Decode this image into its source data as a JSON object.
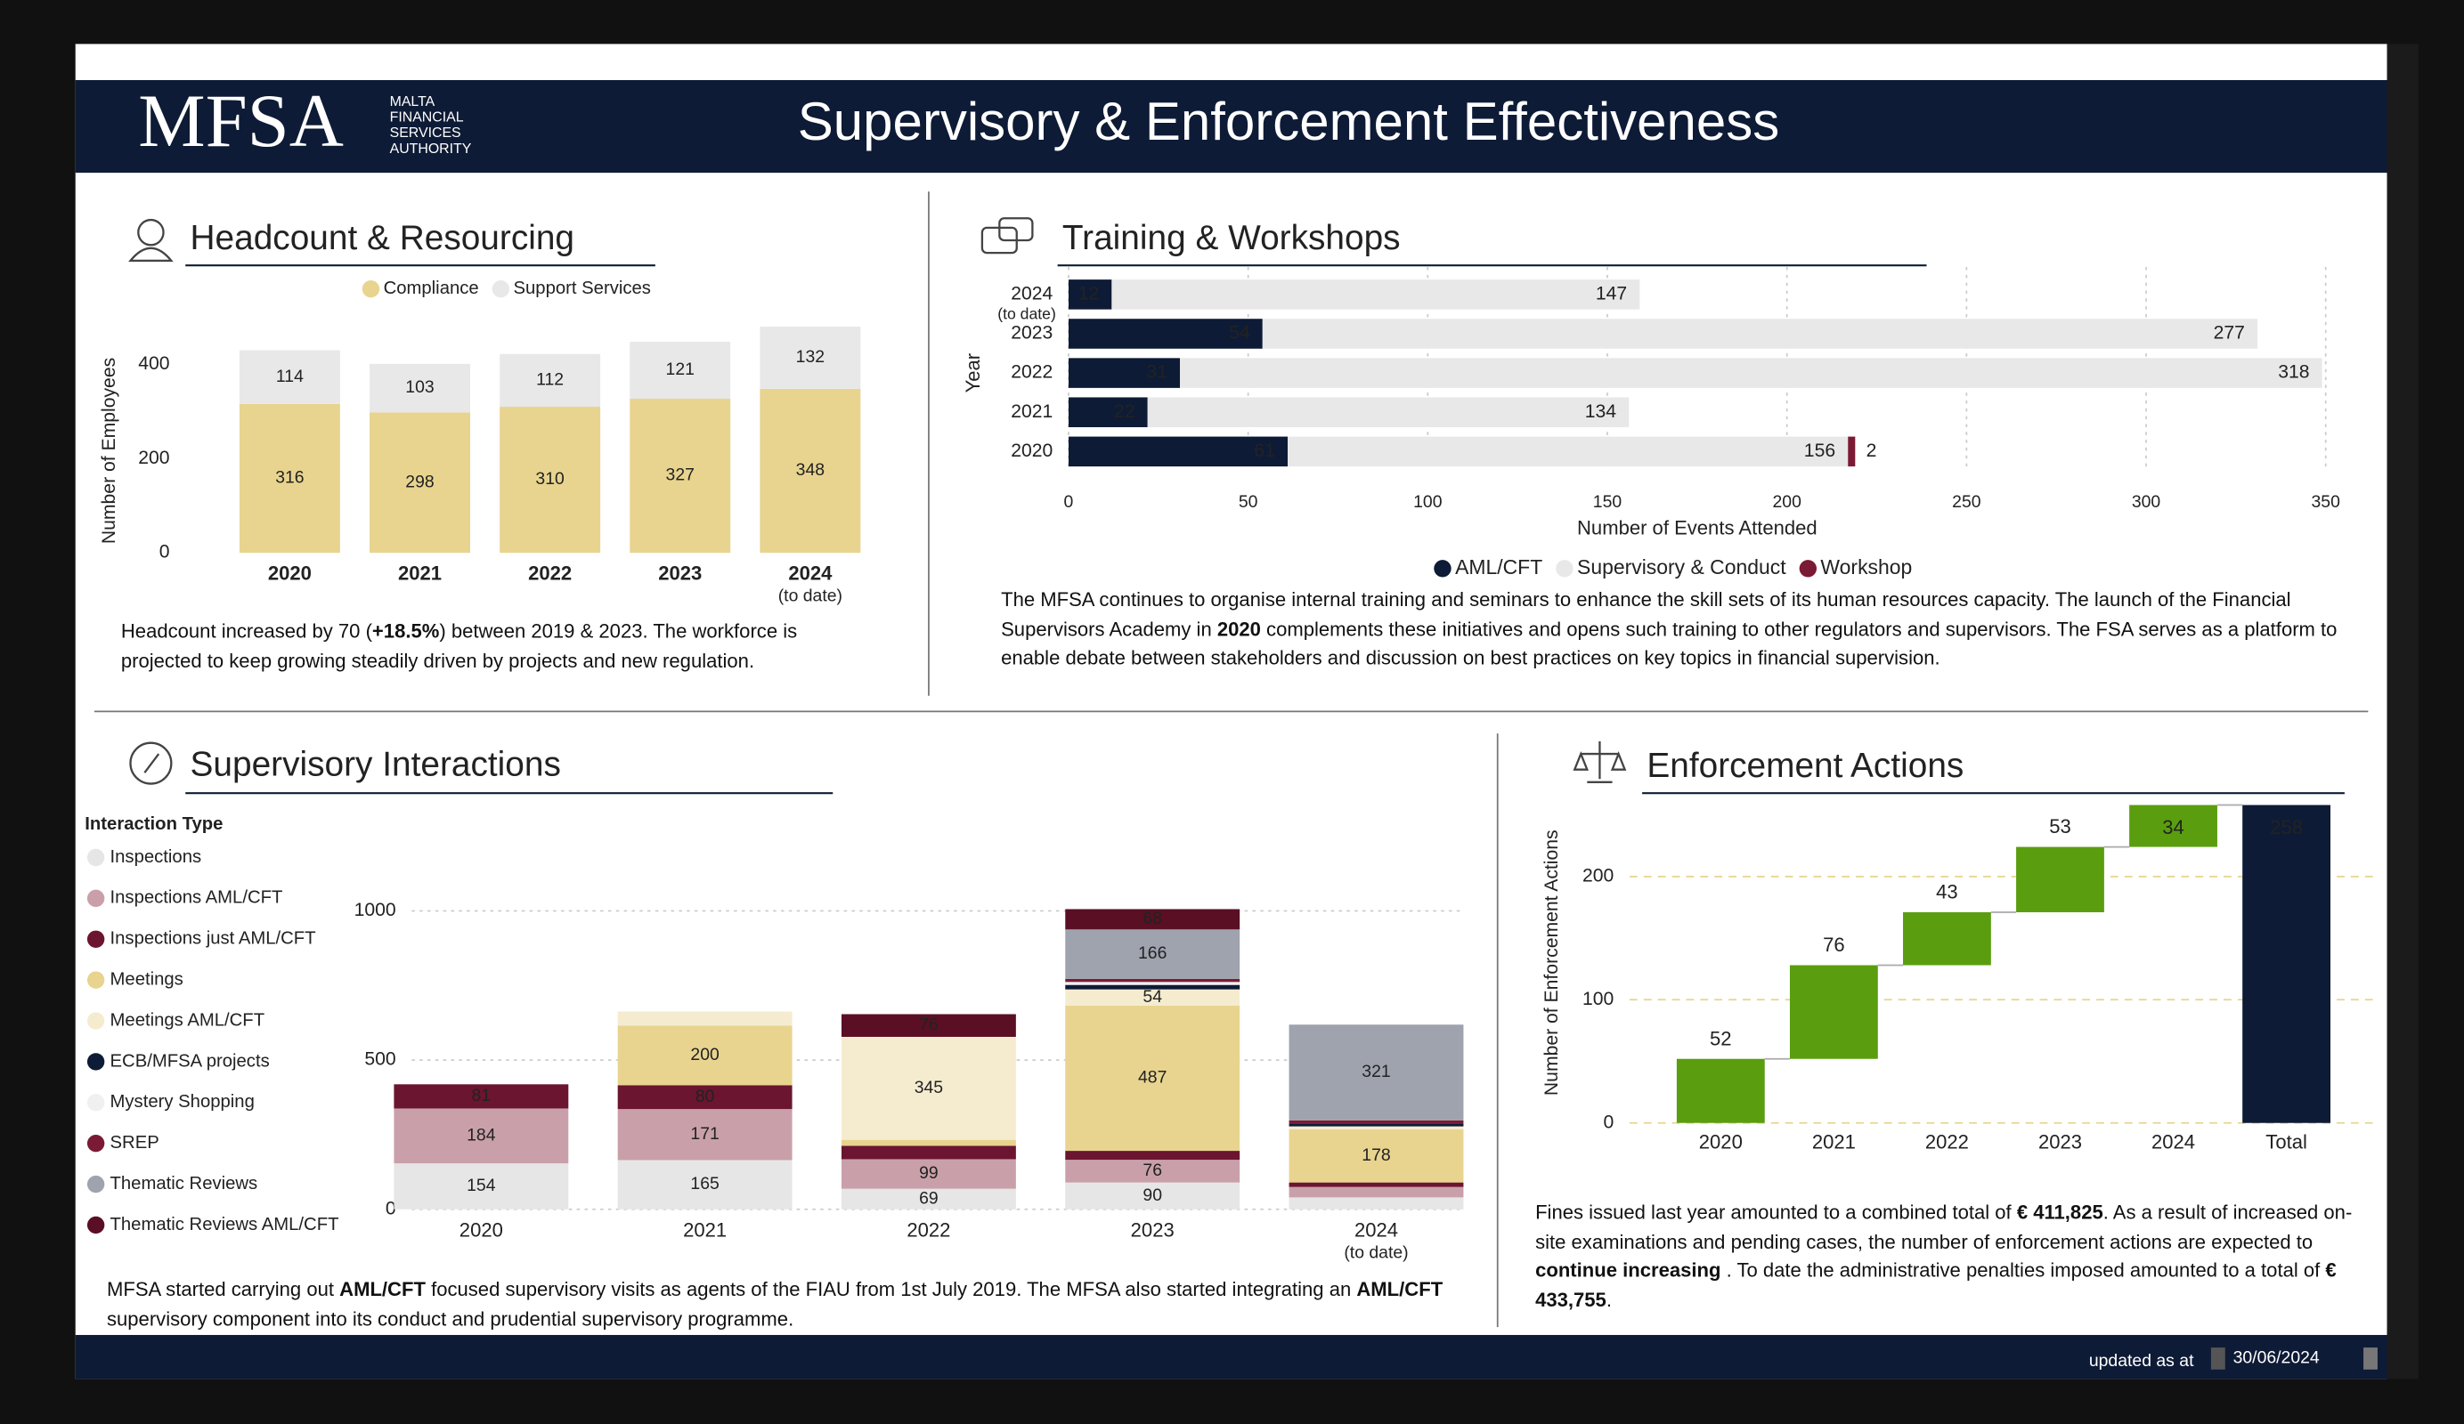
{
  "header": {
    "logo": "MFSA",
    "logo_lines": [
      "MALTA",
      "FINANCIAL",
      "SERVICES",
      "AUTHORITY"
    ],
    "title": "Supervisory & Enforcement Effectiveness"
  },
  "footer": {
    "label": "updated as at",
    "date": "30/06/2024"
  },
  "chart_data": [
    {
      "type": "stacked-bar",
      "title": "Headcount & Resourcing",
      "ylabel": "Number of Employees",
      "legend": "top",
      "grid": false,
      "categories": [
        "2020",
        "2021",
        "2022",
        "2023",
        "2024"
      ],
      "category_notes": [
        null,
        null,
        null,
        null,
        "(to date)"
      ],
      "series": [
        {
          "name": "Compliance",
          "color": "#e8d48f",
          "values": [
            316,
            298,
            310,
            327,
            348
          ]
        },
        {
          "name": "Support Services",
          "color": "#e8e8e8",
          "values": [
            114,
            103,
            112,
            121,
            132
          ]
        }
      ],
      "ylim": [
        0,
        500
      ],
      "yticks": [
        0,
        200,
        400
      ],
      "note": [
        {
          "text": "Headcount increased by 70 ("
        },
        {
          "text": "+18.5%",
          "bold": true
        },
        {
          "text": ") between 2019 & 2023. The workforce is projected to keep growing steadily driven by projects and new regulation."
        }
      ]
    },
    {
      "type": "stacked-barh",
      "title": "Training & Workshops",
      "xlabel": "Number of Events Attended",
      "ylabel": "Year",
      "legend": "bottom",
      "grid": true,
      "categories": [
        "2024",
        "2023",
        "2022",
        "2021",
        "2020"
      ],
      "category_notes": [
        "(to date)",
        null,
        null,
        null,
        null
      ],
      "series": [
        {
          "name": "AML/CFT",
          "color": "#0e1b36",
          "values": [
            12,
            54,
            31,
            22,
            61
          ]
        },
        {
          "name": "Supervisory & Conduct",
          "color": "#e8e8e8",
          "values": [
            147,
            277,
            318,
            134,
            156
          ]
        },
        {
          "name": "Workshop",
          "color": "#7b1a34",
          "values": [
            null,
            null,
            null,
            null,
            2
          ]
        }
      ],
      "xlim": [
        0,
        350
      ],
      "xticks": [
        0,
        50,
        100,
        150,
        200,
        250,
        300,
        350
      ],
      "note": [
        {
          "text": "The MFSA continues to organise internal training and seminars to enhance the skill sets of its human resources capacity. The launch of the Financial Supervisors Academy in "
        },
        {
          "text": "2020",
          "bold": true
        },
        {
          "text": " complements these initiatives and opens such training to other regulators and supervisors. The FSA serves as a platform to enable debate between stakeholders and discussion on best practices on key topics in financial supervision."
        }
      ]
    },
    {
      "type": "stacked-bar",
      "title": "Supervisory Interactions",
      "legend_title": "Interaction Type",
      "legend": "left",
      "grid": true,
      "categories": [
        "2020",
        "2021",
        "2022",
        "2023",
        "2024"
      ],
      "category_notes": [
        null,
        null,
        null,
        null,
        "(to date)"
      ],
      "series": [
        {
          "name": "Inspections",
          "color": "#e6e6e6",
          "values": [
            154,
            165,
            69,
            90,
            40
          ]
        },
        {
          "name": "Inspections AML/CFT",
          "color": "#c9a0aa",
          "values": [
            184,
            171,
            99,
            76,
            35
          ]
        },
        {
          "name": "Inspections just AML/CFT",
          "color": "#6b1530",
          "values": [
            81,
            80,
            45,
            30,
            15
          ]
        },
        {
          "name": "Meetings",
          "color": "#e8d48f",
          "values": [
            null,
            200,
            20,
            487,
            178
          ]
        },
        {
          "name": "Meetings AML/CFT",
          "color": "#f5ecd0",
          "values": [
            null,
            47,
            345,
            54,
            10
          ]
        },
        {
          "name": "ECB/MFSA projects",
          "color": "#0e1b36",
          "values": [
            null,
            null,
            null,
            15,
            10
          ]
        },
        {
          "name": "Mystery Shopping",
          "color": "#f0f0f0",
          "values": [
            null,
            null,
            null,
            10,
            null
          ]
        },
        {
          "name": "SREP",
          "color": "#7b1a34",
          "values": [
            null,
            null,
            null,
            10,
            10
          ]
        },
        {
          "name": "Thematic Reviews",
          "color": "#9ea3ae",
          "values": [
            null,
            null,
            null,
            166,
            321
          ]
        },
        {
          "name": "Thematic Reviews AML/CFT",
          "color": "#5a0f25",
          "values": [
            null,
            null,
            76,
            68,
            null
          ]
        }
      ],
      "ylim": [
        0,
        1050
      ],
      "yticks": [
        0,
        500,
        1000
      ],
      "note": [
        {
          "text": "MFSA started carrying out "
        },
        {
          "text": "AML/CFT",
          "bold": true
        },
        {
          "text": " focused supervisory visits as agents of the FIAU from 1st July 2019. The MFSA also started integrating an "
        },
        {
          "text": "AML/CFT",
          "bold": true
        },
        {
          "text": " supervisory component into its conduct and prudential supervisory programme."
        }
      ]
    },
    {
      "type": "waterfall",
      "title": "Enforcement Actions",
      "ylabel": "Number of Enforcement Actions",
      "grid": true,
      "categories": [
        "2020",
        "2021",
        "2022",
        "2023",
        "2024",
        "Total"
      ],
      "values": [
        52,
        76,
        43,
        53,
        34,
        258
      ],
      "is_total": [
        false,
        false,
        false,
        false,
        false,
        true
      ],
      "color": "#5a9e0f",
      "total_color": "#0e1b36",
      "ylim": [
        0,
        260
      ],
      "yticks": [
        0,
        100,
        200
      ],
      "note": [
        {
          "text": "Fines issued last year amounted to a combined total of "
        },
        {
          "text": "€ 411,825",
          "bold": true
        },
        {
          "text": ". As a result of increased on-site examinations and pending cases, the number of enforcement actions are expected to "
        },
        {
          "text": "continue increasing",
          "bold": true
        },
        {
          "text": " . To date the administrative penalties imposed amounted to a total of "
        },
        {
          "text": "€ 433,755",
          "bold": true
        },
        {
          "text": "."
        }
      ]
    }
  ]
}
